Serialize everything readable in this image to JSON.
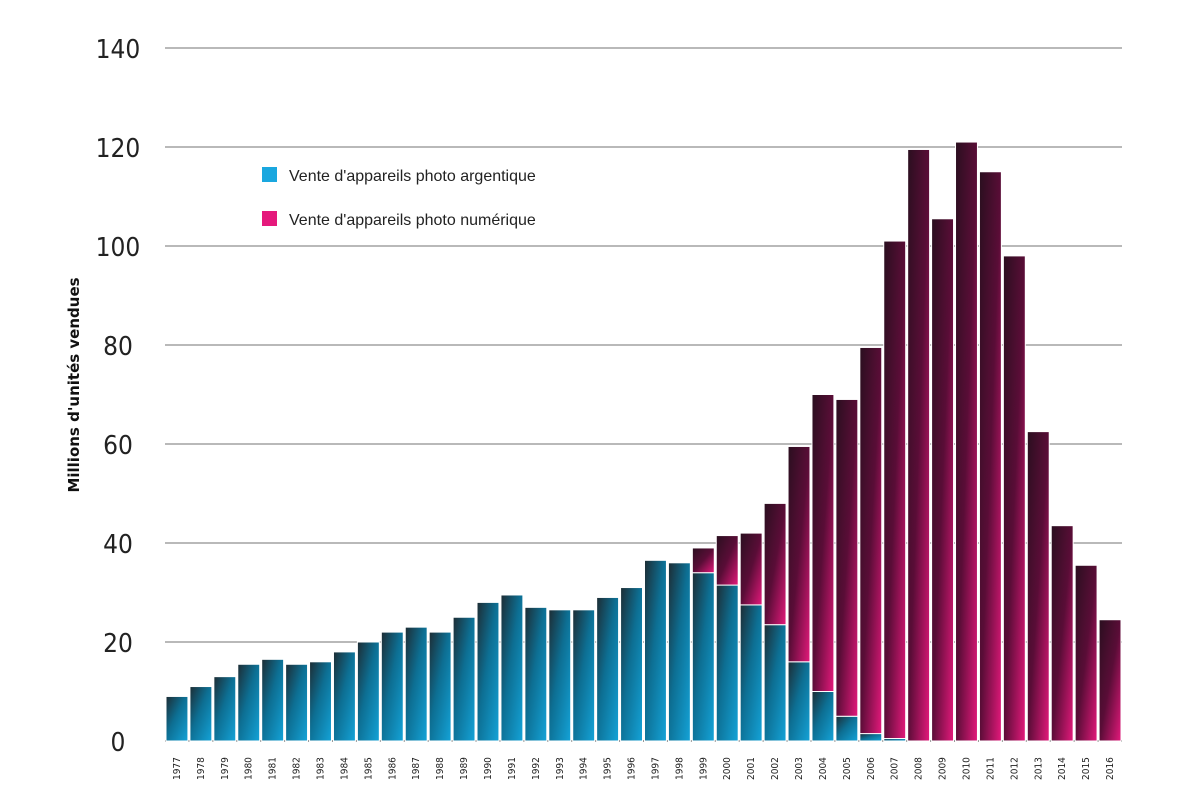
{
  "chart_data": {
    "type": "bar",
    "title": "",
    "xlabel": "",
    "ylabel": "Millions d'unités vendues",
    "ylim": [
      0,
      140
    ],
    "yticks": [
      0,
      20,
      40,
      60,
      80,
      100,
      120,
      140
    ],
    "grid": true,
    "legend_position": "top-left",
    "stacked": true,
    "categories": [
      "1977",
      "1978",
      "1979",
      "1980",
      "1981",
      "1982",
      "1983",
      "1984",
      "1985",
      "1986",
      "1987",
      "1988",
      "1989",
      "1990",
      "1991",
      "1992",
      "1993",
      "1994",
      "1995",
      "1996",
      "1997",
      "1998",
      "1999",
      "2000",
      "2001",
      "2002",
      "2003",
      "2004",
      "2005",
      "2006",
      "2007",
      "2008",
      "2009",
      "2010",
      "2011",
      "2012",
      "2013",
      "2014",
      "2015",
      "2016"
    ],
    "series": [
      {
        "name": "Vente d'appareils photo argentique",
        "color": "#1aa7df",
        "values": [
          9,
          11,
          13,
          15.5,
          16.5,
          15.5,
          16,
          18,
          20,
          22,
          23,
          22,
          25,
          28,
          29.5,
          27,
          26.5,
          26.5,
          29,
          31,
          36.5,
          36,
          34,
          31.5,
          27.5,
          23.5,
          16,
          10,
          5,
          1.5,
          0.5,
          0,
          0,
          0,
          0,
          0,
          0,
          0,
          0,
          0
        ]
      },
      {
        "name": "Vente d'appareils photo numérique",
        "color": "#e5197c",
        "values": [
          0,
          0,
          0,
          0,
          0,
          0,
          0,
          0,
          0,
          0,
          0,
          0,
          0,
          0,
          0,
          0,
          0,
          0,
          0,
          0,
          0,
          0,
          5,
          10,
          14.5,
          24.5,
          43.5,
          60,
          64,
          78,
          100.5,
          119.5,
          105.5,
          121,
          115,
          98,
          62.5,
          43.5,
          35.5,
          24.5
        ]
      }
    ]
  }
}
